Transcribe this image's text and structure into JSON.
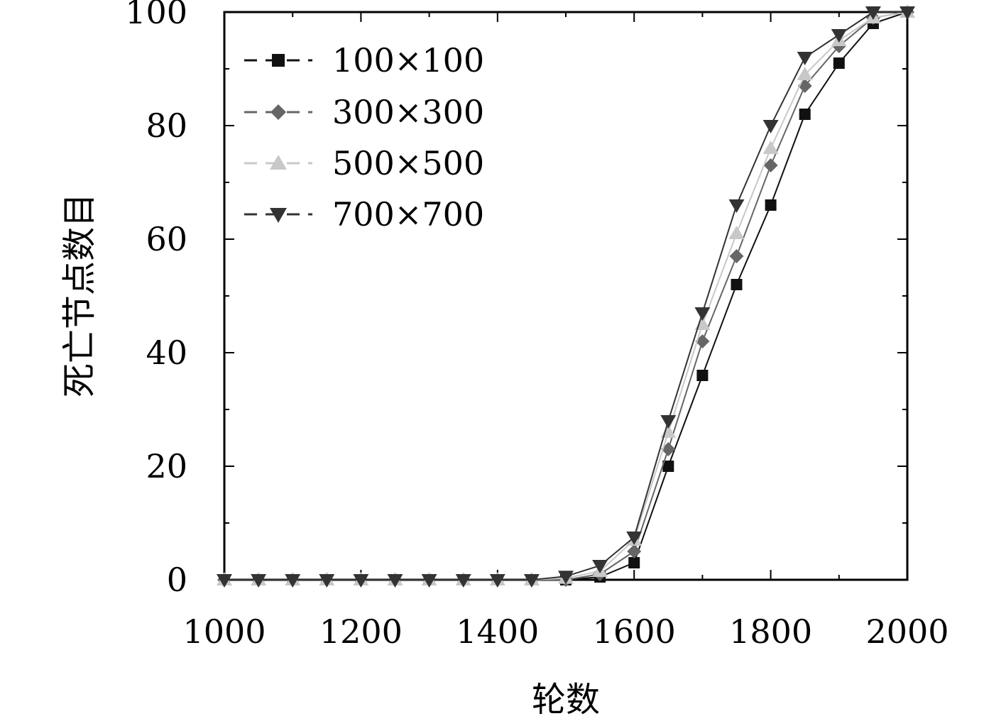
{
  "chart_data": {
    "type": "line",
    "xlabel": "轮数",
    "ylabel": "死亡节点数目",
    "xlim": [
      1000,
      2000
    ],
    "ylim": [
      0,
      100
    ],
    "x_ticks": [
      "1000",
      "1200",
      "1400",
      "1600",
      "1800",
      "2000"
    ],
    "y_ticks": [
      "0",
      "20",
      "40",
      "60",
      "80",
      "100"
    ],
    "grid": false,
    "legend_position": "top-left",
    "x": [
      1000,
      1050,
      1100,
      1150,
      1200,
      1250,
      1300,
      1350,
      1400,
      1450,
      1500,
      1550,
      1600,
      1650,
      1700,
      1750,
      1800,
      1850,
      1900,
      1950,
      2000
    ],
    "series": [
      {
        "name": "100×100",
        "color": "#111111",
        "marker": "square",
        "values": [
          0,
          0,
          0,
          0,
          0,
          0,
          0,
          0,
          0,
          0,
          0,
          0.5,
          3,
          20,
          36,
          52,
          66,
          82,
          91,
          98,
          100
        ]
      },
      {
        "name": "300×300",
        "color": "#666666",
        "marker": "diamond",
        "values": [
          0,
          0,
          0,
          0,
          0,
          0,
          0,
          0,
          0,
          0,
          0,
          1,
          5,
          23,
          42,
          57,
          73,
          87,
          94,
          99,
          100
        ]
      },
      {
        "name": "500×500",
        "color": "#c8c8c8",
        "marker": "triangle-up",
        "values": [
          0,
          0,
          0,
          0,
          0,
          0,
          0,
          0,
          0,
          0,
          0.3,
          1.5,
          7,
          26,
          45,
          61,
          76,
          89,
          95,
          99,
          100
        ]
      },
      {
        "name": "700×700",
        "color": "#333333",
        "marker": "triangle-down",
        "values": [
          0,
          0,
          0,
          0,
          0,
          0,
          0,
          0,
          0,
          0,
          0.6,
          2.5,
          7.5,
          28,
          47,
          66,
          80,
          92,
          96,
          100,
          100
        ]
      }
    ]
  }
}
